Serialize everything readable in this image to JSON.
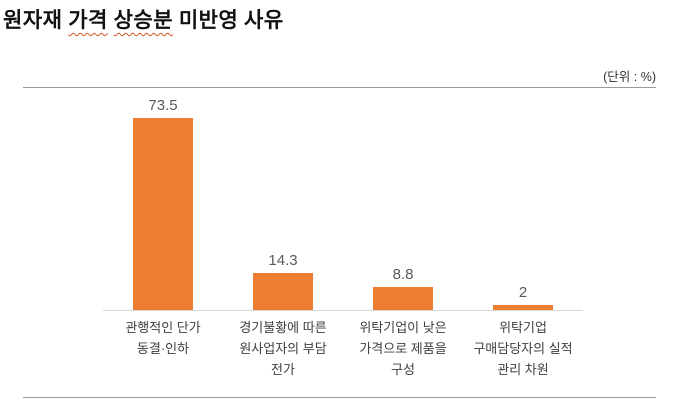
{
  "document": {
    "title": {
      "full_text": "원자재 가격 상승분 미반영 사유",
      "parts": [
        {
          "text": "원자재 ",
          "misspelled": false
        },
        {
          "text": "가격",
          "misspelled": true
        },
        {
          "text": " ",
          "misspelled": false
        },
        {
          "text": "상승분",
          "misspelled": true
        },
        {
          "text": " 미반영 사유",
          "misspelled": false
        }
      ]
    },
    "unit_label": "(단위 : %)"
  },
  "colors": {
    "bar": "#ED7D31",
    "baseline": "#D9D9D9",
    "rule_line": "#999999",
    "value_label": "#595959",
    "category_label": "#404040",
    "spellcheck_underline": "#D2552C"
  },
  "chart_data": {
    "type": "bar",
    "title": "원자재 가격 상승분 미반영 사유",
    "unit_label": "(단위 : %)",
    "categories": [
      "관행적인 단가 동결·인하",
      "경기불황에 따른 원사업자의 부담 전가",
      "위탁기업이 낮은 가격으로 제품을 구성",
      "위탁기업 구매담당자의 실적 관리 차원"
    ],
    "category_lines": [
      [
        "관행적인 단가",
        "동결·인하"
      ],
      [
        "경기불황에 따른",
        "원사업자의 부담",
        "전가"
      ],
      [
        "위탁기업이 낮은",
        "가격으로 제품을",
        "구성"
      ],
      [
        "위탁기업",
        "구매담당자의 실적",
        "관리 차원"
      ]
    ],
    "values": [
      73.5,
      14.3,
      8.8,
      2
    ],
    "value_labels": [
      "73.5",
      "14.3",
      "8.8",
      "2"
    ],
    "bar_color": "#ED7D31",
    "xlabel": "",
    "ylabel": "",
    "ylim": [
      0,
      85
    ],
    "grid": false,
    "legend": "none",
    "data_labels": "above-bars"
  }
}
